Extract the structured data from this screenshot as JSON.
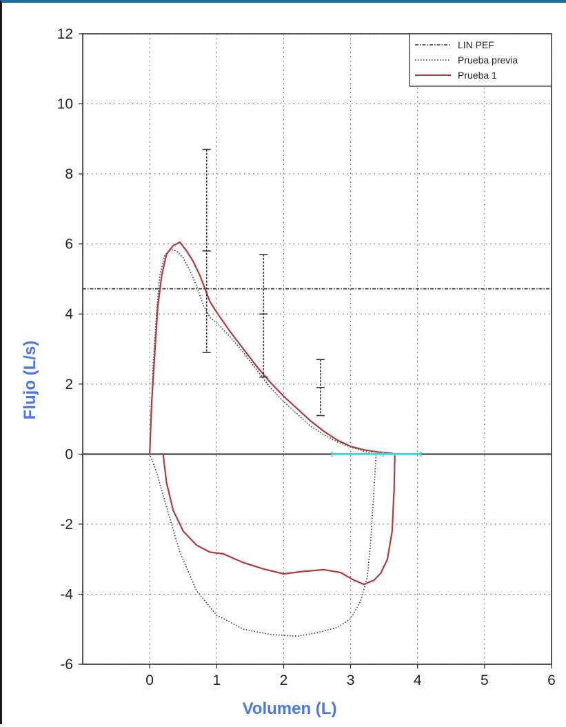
{
  "chart_data": {
    "type": "line",
    "title": "",
    "xlabel": "Volumen (L)",
    "ylabel": "Flujo (L/s)",
    "label_color": "#4a78e6",
    "xlim": [
      -1,
      6
    ],
    "ylim": [
      -6,
      12
    ],
    "xticks": [
      0,
      1,
      2,
      3,
      4,
      5,
      6
    ],
    "yticks": [
      -6,
      -4,
      -2,
      0,
      2,
      4,
      6,
      8,
      10,
      12
    ],
    "grid": true,
    "legend_position": "top-right",
    "reference_lines": {
      "y": [
        0
      ],
      "lin_pef": 4.72
    },
    "series": [
      {
        "name": "LIN PEF",
        "color": "#333333",
        "style": "dash-dot",
        "points": [
          [
            -1,
            4.72
          ],
          [
            6,
            4.72
          ]
        ]
      },
      {
        "name": "Prueba previa",
        "color": "#333333",
        "style": "dotted",
        "points": [
          [
            0.0,
            0.0
          ],
          [
            0.05,
            2.5
          ],
          [
            0.1,
            4.0
          ],
          [
            0.15,
            5.1
          ],
          [
            0.22,
            5.65
          ],
          [
            0.3,
            5.85
          ],
          [
            0.4,
            5.8
          ],
          [
            0.5,
            5.6
          ],
          [
            0.6,
            5.25
          ],
          [
            0.7,
            4.8
          ],
          [
            0.8,
            4.25
          ],
          [
            0.9,
            3.9
          ],
          [
            1.0,
            3.75
          ],
          [
            1.2,
            3.35
          ],
          [
            1.4,
            2.9
          ],
          [
            1.6,
            2.4
          ],
          [
            1.8,
            1.9
          ],
          [
            2.0,
            1.5
          ],
          [
            2.2,
            1.15
          ],
          [
            2.4,
            0.8
          ],
          [
            2.6,
            0.55
          ],
          [
            2.8,
            0.35
          ],
          [
            3.0,
            0.2
          ],
          [
            3.2,
            0.08
          ],
          [
            3.38,
            0.0
          ],
          [
            3.35,
            -1.0
          ],
          [
            3.3,
            -2.5
          ],
          [
            3.25,
            -3.5
          ],
          [
            3.15,
            -4.2
          ],
          [
            3.0,
            -4.7
          ],
          [
            2.8,
            -4.95
          ],
          [
            2.5,
            -5.1
          ],
          [
            2.2,
            -5.2
          ],
          [
            1.8,
            -5.15
          ],
          [
            1.4,
            -5.0
          ],
          [
            1.0,
            -4.6
          ],
          [
            0.7,
            -3.9
          ],
          [
            0.45,
            -2.8
          ],
          [
            0.25,
            -1.5
          ],
          [
            0.1,
            -0.5
          ],
          [
            0.0,
            0.0
          ]
        ]
      },
      {
        "name": "Prueba 1",
        "color": "#b33a3a",
        "style": "solid",
        "points": [
          [
            0.0,
            0.0
          ],
          [
            0.03,
            1.5
          ],
          [
            0.08,
            3.0
          ],
          [
            0.12,
            4.2
          ],
          [
            0.18,
            5.1
          ],
          [
            0.25,
            5.7
          ],
          [
            0.35,
            5.95
          ],
          [
            0.45,
            6.05
          ],
          [
            0.55,
            5.8
          ],
          [
            0.65,
            5.5
          ],
          [
            0.75,
            5.1
          ],
          [
            0.85,
            4.6
          ],
          [
            0.9,
            4.35
          ],
          [
            1.0,
            4.05
          ],
          [
            1.2,
            3.5
          ],
          [
            1.4,
            3.0
          ],
          [
            1.6,
            2.5
          ],
          [
            1.8,
            2.05
          ],
          [
            2.0,
            1.65
          ],
          [
            2.2,
            1.3
          ],
          [
            2.4,
            0.95
          ],
          [
            2.6,
            0.65
          ],
          [
            2.8,
            0.4
          ],
          [
            3.0,
            0.22
          ],
          [
            3.2,
            0.12
          ],
          [
            3.4,
            0.06
          ],
          [
            3.6,
            0.03
          ],
          [
            3.66,
            0.0
          ],
          [
            3.65,
            -1.0
          ],
          [
            3.62,
            -2.2
          ],
          [
            3.55,
            -3.0
          ],
          [
            3.45,
            -3.4
          ],
          [
            3.35,
            -3.6
          ],
          [
            3.2,
            -3.72
          ],
          [
            3.05,
            -3.6
          ],
          [
            2.85,
            -3.38
          ],
          [
            2.6,
            -3.3
          ],
          [
            2.3,
            -3.35
          ],
          [
            2.0,
            -3.42
          ],
          [
            1.7,
            -3.28
          ],
          [
            1.4,
            -3.1
          ],
          [
            1.1,
            -2.85
          ],
          [
            0.9,
            -2.8
          ],
          [
            0.7,
            -2.6
          ],
          [
            0.5,
            -2.2
          ],
          [
            0.35,
            -1.6
          ],
          [
            0.25,
            -0.8
          ],
          [
            0.2,
            0.0
          ]
        ]
      }
    ],
    "error_bars": [
      {
        "x": 0.85,
        "center": 5.8,
        "low": 2.9,
        "high": 8.7
      },
      {
        "x": 1.7,
        "center": 4.0,
        "low": 2.2,
        "high": 5.7
      },
      {
        "x": 2.55,
        "center": 1.9,
        "low": 1.1,
        "high": 2.7
      }
    ],
    "horizontal_bar": {
      "x_from": 2.72,
      "x_to": 4.05,
      "y": 0,
      "color": "#3fd8e6"
    }
  }
}
